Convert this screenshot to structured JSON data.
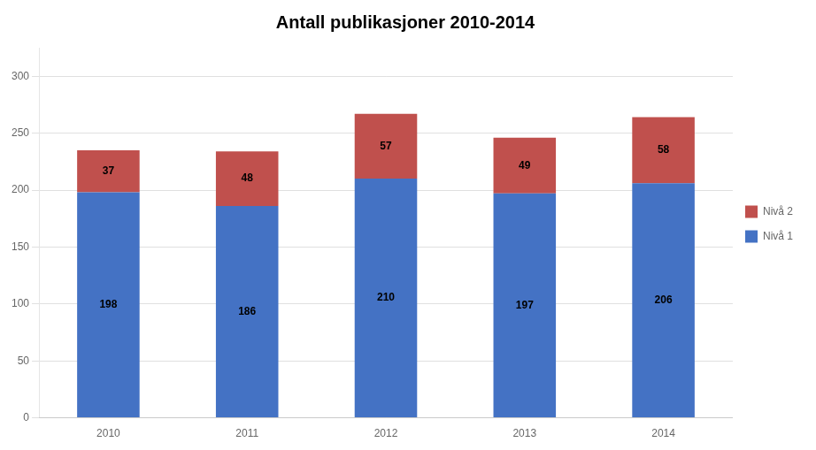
{
  "chart_data": {
    "type": "bar",
    "title": "Antall publikasjoner 2010-2014",
    "categories": [
      "2010",
      "2011",
      "2012",
      "2013",
      "2014"
    ],
    "series": [
      {
        "name": "Nivå 1",
        "color": "#4472C4",
        "values": [
          198,
          186,
          210,
          197,
          206
        ]
      },
      {
        "name": "Nivå 2",
        "color": "#C0504D",
        "values": [
          37,
          48,
          57,
          49,
          58
        ]
      }
    ],
    "stacked": true,
    "ylim": [
      0,
      325
    ],
    "yticks": [
      0,
      50,
      100,
      150,
      200,
      250,
      300
    ],
    "grid": true,
    "legend": "right",
    "data_labels": true
  }
}
